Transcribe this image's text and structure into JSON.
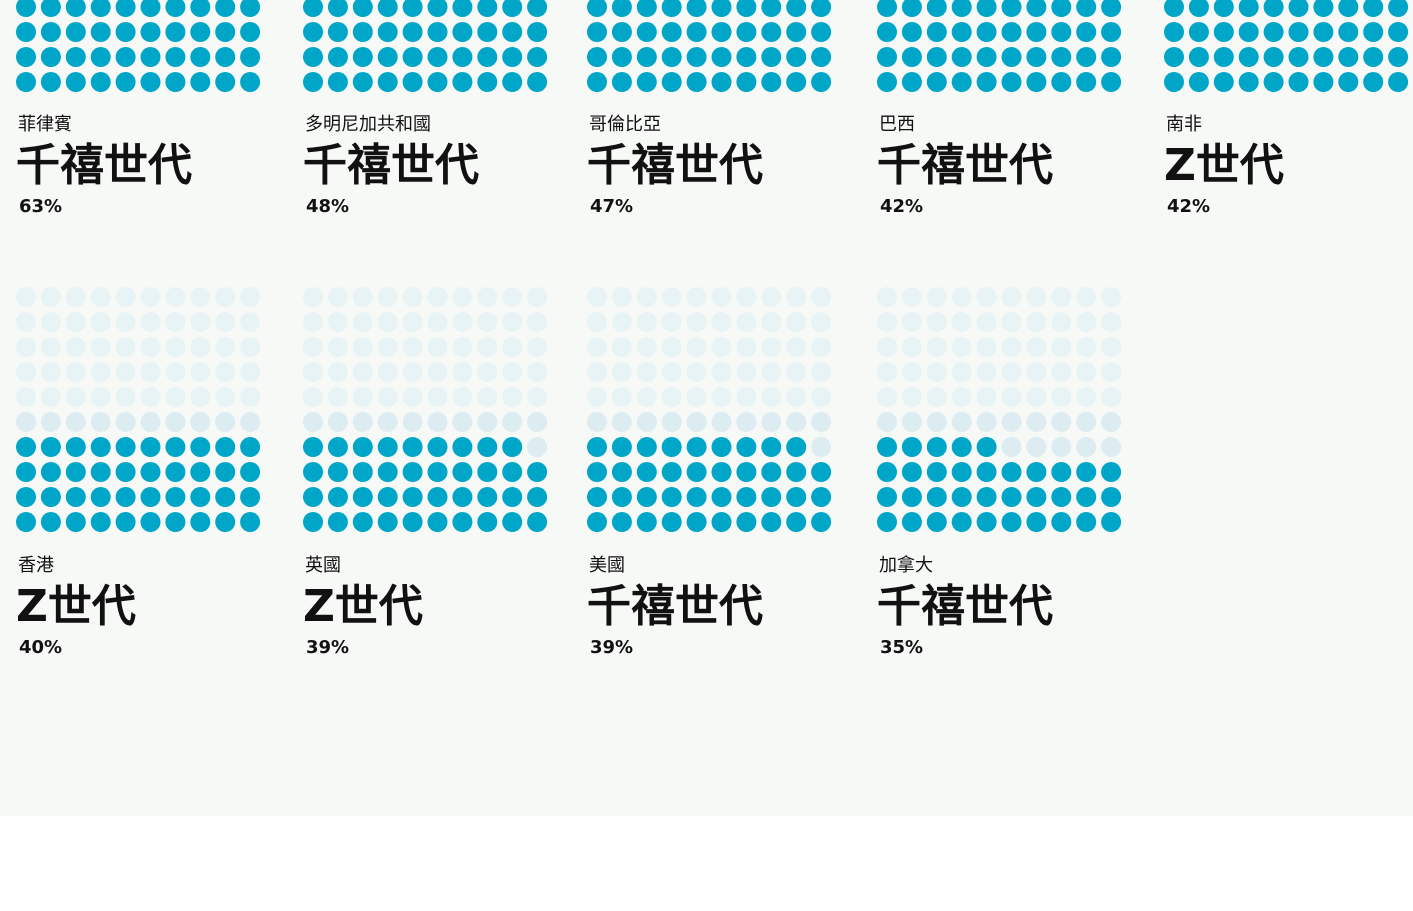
{
  "chart_data": {
    "type": "waffle",
    "categories": [
      "菲律賓",
      "多明尼加共和國",
      "哥倫比亞",
      "巴西",
      "南非",
      "香港",
      "英國",
      "美國",
      "加拿大"
    ],
    "labels": [
      "千禧世代",
      "千禧世代",
      "千禧世代",
      "千禧世代",
      "Z世代",
      "Z世代",
      "Z世代",
      "千禧世代",
      "千禧世代"
    ],
    "values": [
      63,
      48,
      47,
      42,
      42,
      40,
      39,
      39,
      35
    ],
    "value_labels": [
      "63%",
      "48%",
      "47%",
      "42%",
      "42%",
      "40%",
      "39%",
      "39%",
      "35%"
    ],
    "color": "#00a6c8"
  }
}
